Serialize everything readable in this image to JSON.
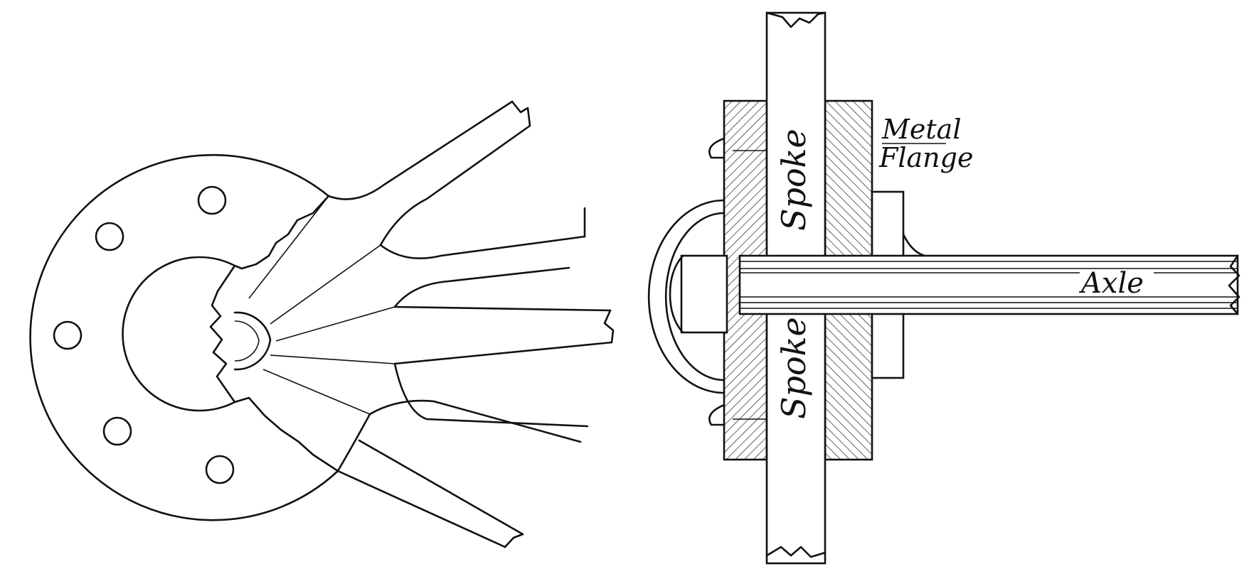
{
  "labels": {
    "metal_flange_line1": "Metal",
    "metal_flange_line2": "Flange",
    "spoke_upper": "Spoke",
    "spoke_lower": "Spoke",
    "axle": "Axle"
  },
  "colors": {
    "ink": "#111111",
    "paper": "#ffffff"
  }
}
